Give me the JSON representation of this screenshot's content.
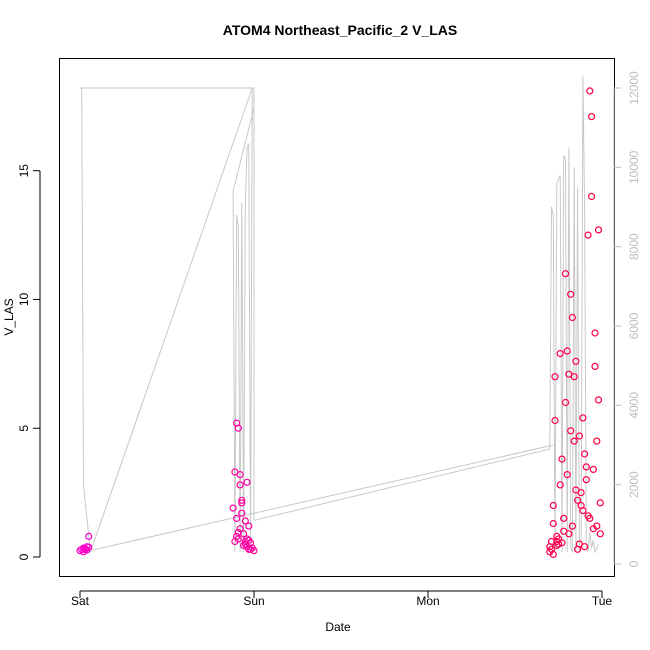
{
  "chart_data": {
    "type": "scatter",
    "title": "ATOM4 Northeast_Pacific_2 V_LAS",
    "xlabel": "Date",
    "ylabel": "V_LAS",
    "x_categories": [
      "Sat",
      "Sun",
      "Mon",
      "Tue"
    ],
    "ylim": [
      0,
      18.6
    ],
    "yticks": [
      0,
      5,
      10,
      15
    ],
    "y2lim": [
      0,
      12300
    ],
    "y2ticks": [
      0,
      2000,
      4000,
      6000,
      8000,
      10000,
      12000
    ],
    "grid": false,
    "colors": {
      "points_low": "#ff00cc",
      "points_high": "#ff0040",
      "trace": "#c8c8c8"
    },
    "series": [
      {
        "kind": "points",
        "axis": "left",
        "x": [
          0.0,
          0.01,
          0.02,
          0.03,
          0.04,
          0.05,
          0.02,
          0.03,
          0.04,
          0.05,
          0.88,
          0.89,
          0.9,
          0.91,
          0.92,
          0.93,
          0.94,
          0.95,
          0.96,
          0.97,
          0.98,
          0.99,
          1.0,
          0.9,
          0.91,
          0.93,
          0.95,
          0.97,
          0.92,
          0.96,
          0.9,
          0.92,
          0.94,
          0.96,
          0.98,
          0.89,
          0.91,
          0.93,
          0.95,
          0.97,
          2.7,
          2.71,
          2.72,
          2.73,
          2.74,
          2.75,
          2.76,
          2.77,
          2.78,
          2.79,
          2.8,
          2.81,
          2.82,
          2.83,
          2.84,
          2.85,
          2.86,
          2.87,
          2.88,
          2.89,
          2.9,
          2.91,
          2.92,
          2.93,
          2.94,
          2.95,
          2.96,
          2.97,
          2.98,
          2.99,
          2.71,
          2.73,
          2.75,
          2.77,
          2.79,
          2.81,
          2.83,
          2.85,
          2.87,
          2.89,
          2.91,
          2.93,
          2.95,
          2.97,
          2.99,
          2.72,
          2.76,
          2.8,
          2.84,
          2.88,
          2.92,
          2.96,
          2.74,
          2.78,
          2.82,
          2.86,
          2.9,
          2.94,
          2.98,
          2.7,
          2.72,
          2.74
        ],
        "y": [
          0.25,
          0.3,
          0.35,
          0.28,
          0.4,
          0.8,
          0.2,
          0.32,
          0.27,
          0.38,
          1.9,
          3.3,
          5.2,
          5.0,
          2.8,
          2.1,
          0.9,
          0.5,
          0.4,
          0.3,
          0.3,
          0.35,
          0.25,
          1.5,
          0.7,
          2.2,
          0.6,
          1.2,
          3.2,
          2.9,
          0.8,
          1.1,
          0.45,
          0.7,
          0.55,
          0.6,
          0.95,
          1.7,
          1.4,
          0.65,
          0.4,
          0.6,
          2.0,
          7.0,
          0.8,
          0.5,
          7.9,
          3.8,
          1.5,
          11.0,
          8.0,
          0.9,
          10.2,
          1.2,
          4.5,
          2.6,
          0.3,
          0.5,
          2.0,
          1.8,
          4.0,
          3.0,
          12.5,
          18.1,
          17.1,
          1.1,
          7.4,
          4.5,
          6.1,
          0.9,
          0.3,
          5.3,
          0.7,
          0.55,
          6.0,
          7.1,
          9.3,
          7.6,
          4.7,
          5.4,
          3.5,
          1.5,
          3.4,
          1.2,
          2.1,
          1.3,
          2.8,
          3.2,
          7.0,
          2.5,
          1.6,
          8.7,
          0.6,
          1.0,
          4.9,
          2.2,
          0.4,
          14.0,
          12.7,
          0.2,
          0.1,
          0.45
        ],
        "y_top": [
          0.3,
          18.6
        ]
      },
      {
        "kind": "line",
        "axis": "right",
        "x": [
          0.0,
          0.01,
          0.02,
          0.06,
          0.99,
          1.0,
          1.0,
          0.88,
          0.89,
          0.9,
          0.91,
          0.92,
          0.93,
          0.94,
          0.95,
          0.96,
          0.97,
          0.98,
          0.99,
          1.0,
          1.0,
          2.7,
          2.71,
          2.72,
          2.73,
          2.74,
          2.76,
          2.77,
          2.78,
          2.79,
          2.8,
          2.81,
          2.82,
          2.83,
          2.84,
          2.85,
          2.86,
          2.87,
          2.88,
          2.89,
          2.9,
          2.91,
          2.92,
          2.93,
          2.94,
          2.95,
          2.96,
          2.97,
          2.98
        ],
        "y": [
          12000,
          12000,
          2000,
          300,
          12000,
          12000,
          11500,
          9400,
          300,
          8800,
          8500,
          300,
          9100,
          300,
          9000,
          10500,
          10600,
          300,
          12000,
          12000,
          1100,
          2900,
          9000,
          8800,
          300,
          9600,
          9800,
          300,
          10300,
          10200,
          300,
          10500,
          400,
          300,
          10000,
          300,
          9500,
          300,
          400,
          12300,
          9000,
          500,
          300,
          800,
          400,
          600,
          300,
          400,
          500
        ]
      }
    ]
  }
}
